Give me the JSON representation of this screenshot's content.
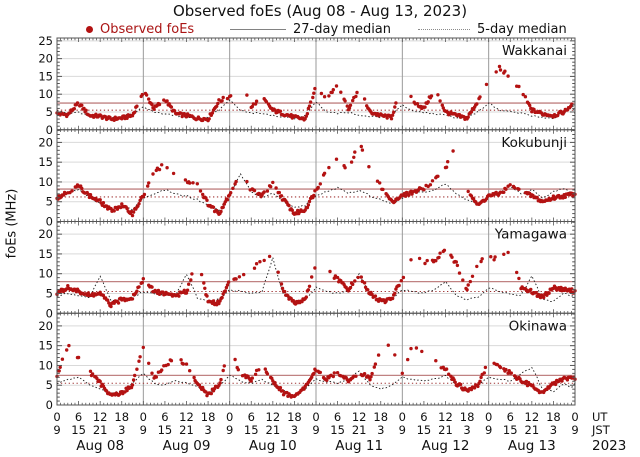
{
  "chart_data": {
    "type": "scatter",
    "title": "Observed foEs (Aug 08 - Aug 13, 2023)",
    "ylabel": "foEs (MHz)",
    "legend": [
      {
        "marker": "red-dot",
        "label": "Observed foEs"
      },
      {
        "marker": "solid-line",
        "label": "27-day median"
      },
      {
        "marker": "dotted-line",
        "label": "5-day median"
      }
    ],
    "colors": {
      "observed_dot": "#b31212",
      "legend_observed_text": "#aa1414",
      "median27_line": "#c08282",
      "median5_dotted_line": "#a03333",
      "median_trace": "#1a1a1a",
      "grid_major": "#d9d9d9",
      "day_divider": "#9a9a9a",
      "panel_border": "#555555"
    },
    "x_axis": {
      "hours_start": 0,
      "hours_end": 144,
      "hours_step": 3,
      "ut_label": "UT",
      "jst_label": "JST",
      "year_label": "2023",
      "ut_ticks": [
        "0",
        "6",
        "12",
        "18",
        "0",
        "6",
        "12",
        "18",
        "0",
        "6",
        "12",
        "18",
        "0",
        "6",
        "12",
        "18",
        "0",
        "6",
        "12",
        "18",
        "0",
        "6",
        "12",
        "18",
        "0"
      ],
      "jst_ticks": [
        "9",
        "15",
        "21",
        "3",
        "9",
        "15",
        "21",
        "3",
        "9",
        "15",
        "21",
        "3",
        "9",
        "15",
        "21",
        "3",
        "9",
        "15",
        "21",
        "3",
        "9",
        "15",
        "21",
        "3",
        "9"
      ],
      "dates": [
        "Aug 08",
        "Aug 09",
        "Aug 10",
        "Aug 11",
        "Aug 12",
        "Aug 13"
      ]
    },
    "y_axis": {
      "unit": "MHz",
      "panel1_ticks": [
        0,
        5,
        10,
        15,
        20,
        25
      ],
      "other_ticks": [
        0,
        5,
        10,
        15,
        20
      ]
    },
    "panels": [
      {
        "station": "Wakkanai",
        "ymax": 25.8,
        "ticks": [
          0,
          5,
          10,
          15,
          20,
          25
        ],
        "median27_level": 7.5,
        "median5_level": 5.5,
        "observed_3h": [
          4.5,
          4.2,
          7.5,
          4.0,
          3.8,
          3.0,
          3.3,
          4.0,
          11.0,
          6.0,
          8.5,
          4.5,
          4.0,
          3.2,
          3.0,
          8.0,
          9.5,
          13.5,
          6.5,
          9.0,
          5.5,
          4.5,
          3.5,
          3.0,
          12.0,
          9.0,
          13.0,
          6.0,
          11.5,
          5.0,
          4.0,
          3.5,
          12.5,
          8.0,
          6.0,
          11.5,
          5.0,
          4.0,
          3.2,
          8.0,
          14.0,
          17.5,
          14.5,
          11.0,
          5.5,
          4.5,
          4.0,
          5.0,
          8.0
        ],
        "median_trace_3h": [
          5.5,
          4.5,
          4.8,
          4.2,
          3.5,
          3.2,
          3.8,
          4.5,
          6.5,
          5.0,
          4.5,
          4.0,
          3.5,
          3.3,
          3.6,
          5.5,
          8.3,
          5.5,
          4.8,
          4.5,
          4.0,
          3.6,
          3.2,
          4.0,
          7.8,
          5.0,
          4.6,
          4.8,
          4.2,
          3.8,
          3.5,
          4.2,
          7.0,
          5.2,
          4.8,
          4.5,
          4.0,
          3.4,
          3.6,
          5.0,
          7.5,
          5.5,
          5.0,
          4.6,
          4.0,
          3.5,
          3.2,
          4.5,
          8.2
        ]
      },
      {
        "station": "Kokubunji",
        "ymax": 23.2,
        "ticks": [
          0,
          5,
          10,
          15,
          20
        ],
        "median27_level": 8.2,
        "median5_level": 6.2,
        "observed_3h": [
          6.0,
          7.5,
          9.0,
          6.5,
          5.0,
          2.8,
          4.0,
          2.0,
          6.5,
          12.5,
          14.5,
          11.0,
          10.0,
          9.5,
          4.5,
          2.0,
          7.0,
          12.5,
          8.0,
          6.5,
          9.5,
          5.5,
          2.0,
          3.0,
          8.0,
          13.0,
          16.5,
          12.0,
          20.5,
          13.0,
          9.0,
          5.0,
          6.5,
          7.5,
          8.5,
          10.5,
          13.5,
          19.5,
          8.5,
          4.0,
          6.5,
          7.0,
          9.0,
          7.5,
          6.5,
          5.0,
          6.0,
          6.5,
          7.0
        ],
        "median_trace_3h": [
          6.5,
          7.5,
          8.0,
          6.0,
          4.5,
          3.5,
          4.0,
          3.0,
          6.0,
          7.0,
          8.0,
          7.0,
          6.5,
          5.5,
          4.0,
          3.0,
          6.5,
          12.0,
          7.5,
          6.0,
          7.0,
          5.0,
          3.5,
          4.0,
          6.5,
          7.5,
          8.5,
          7.0,
          8.0,
          6.5,
          5.5,
          4.5,
          6.0,
          7.0,
          7.5,
          8.0,
          9.5,
          7.0,
          5.5,
          4.5,
          6.5,
          7.5,
          9.0,
          7.0,
          8.0,
          6.0,
          7.5,
          8.5,
          6.5
        ]
      },
      {
        "station": "Yamagawa",
        "ymax": 23.2,
        "ticks": [
          0,
          5,
          10,
          15,
          20
        ],
        "median27_level": 8.0,
        "median5_level": 5.5,
        "observed_3h": [
          5.0,
          6.5,
          5.5,
          4.5,
          5.0,
          2.0,
          3.5,
          4.0,
          8.7,
          5.5,
          5.0,
          4.5,
          5.5,
          13.8,
          3.0,
          2.5,
          8.0,
          9.8,
          11.0,
          13.5,
          15.0,
          5.5,
          2.5,
          3.5,
          12.3,
          10.7,
          8.6,
          6.0,
          9.8,
          5.0,
          3.0,
          3.5,
          9.0,
          14.3,
          12.8,
          13.0,
          16.5,
          12.5,
          6.0,
          13.0,
          13.8,
          14.0,
          15.8,
          6.5,
          5.5,
          4.0,
          6.5,
          6.0,
          5.5
        ],
        "median_trace_3h": [
          4.5,
          5.0,
          4.5,
          4.0,
          9.5,
          3.0,
          3.5,
          4.0,
          5.5,
          5.0,
          4.5,
          4.5,
          10.0,
          4.0,
          3.0,
          3.5,
          6.0,
          5.5,
          5.0,
          5.5,
          14.0,
          4.5,
          3.0,
          3.5,
          6.5,
          5.5,
          5.0,
          5.5,
          10.0,
          4.5,
          3.0,
          3.5,
          6.0,
          5.5,
          5.0,
          6.0,
          8.0,
          4.5,
          3.5,
          4.0,
          6.5,
          5.5,
          5.0,
          4.5,
          9.5,
          3.5,
          3.0,
          5.0,
          4.0
        ]
      },
      {
        "station": "Okinawa",
        "ymax": 23.2,
        "ticks": [
          0,
          5,
          10,
          15,
          20
        ],
        "median27_level": 7.5,
        "median5_level": 5.5,
        "observed_3h": [
          7.5,
          15.0,
          12.0,
          8.5,
          5.5,
          2.5,
          3.0,
          5.0,
          15.0,
          6.5,
          9.9,
          12.1,
          10.0,
          5.5,
          2.5,
          5.0,
          14.5,
          7.5,
          6.5,
          10.4,
          6.0,
          3.0,
          2.0,
          4.5,
          9.0,
          6.5,
          8.3,
          6.0,
          8.5,
          6.5,
          14.0,
          15.0,
          8.0,
          15.5,
          12.9,
          10.9,
          9.0,
          5.5,
          3.5,
          5.0,
          10.9,
          9.5,
          8.3,
          6.0,
          5.0,
          3.0,
          5.5,
          6.5,
          7.0
        ],
        "median_trace_3h": [
          5.5,
          6.5,
          7.0,
          5.0,
          4.0,
          3.0,
          3.5,
          5.5,
          8.0,
          5.5,
          5.0,
          6.0,
          5.5,
          4.5,
          3.0,
          4.5,
          7.5,
          6.0,
          5.5,
          6.5,
          5.0,
          3.5,
          2.5,
          4.0,
          6.5,
          6.0,
          5.5,
          6.5,
          8.7,
          5.0,
          4.0,
          5.0,
          7.0,
          6.5,
          6.0,
          6.5,
          7.5,
          5.0,
          4.0,
          5.0,
          7.0,
          6.5,
          6.0,
          7.8,
          9.5,
          4.0,
          3.5,
          5.5,
          4.0
        ]
      }
    ],
    "layout": {
      "grid": true,
      "legend_position": "top",
      "panels_stacked": 4
    }
  }
}
